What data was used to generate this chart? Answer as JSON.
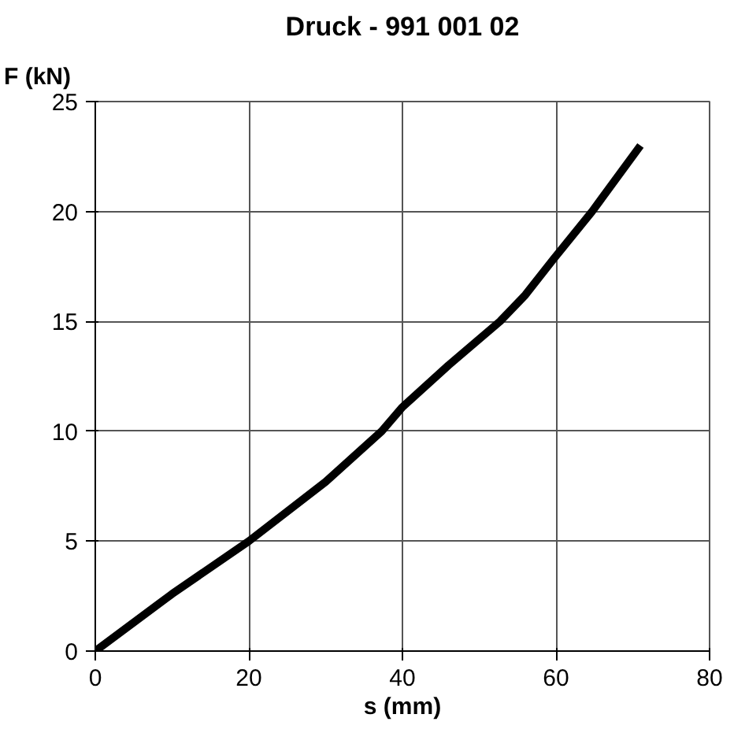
{
  "chart_data": {
    "type": "line",
    "title": "Druck - 991 001 02",
    "xlabel": "s (mm)",
    "ylabel": "F (kN)",
    "x": [
      0,
      10,
      20,
      30,
      37.3,
      40,
      46,
      52.7,
      56,
      59.6,
      64.7,
      71
    ],
    "series": [
      {
        "color": "#000000",
        "values": [
          0,
          2.6,
          5,
          7.7,
          10,
          11.1,
          13,
          15,
          16.2,
          17.8,
          20,
          23
        ]
      }
    ],
    "xlim": [
      0,
      80
    ],
    "ylim": [
      0,
      25
    ],
    "xticks": [
      0,
      20,
      40,
      60,
      80
    ],
    "yticks": [
      0,
      5,
      10,
      15,
      20,
      25
    ],
    "grid": true,
    "marker": "none",
    "line_style": "solid"
  }
}
